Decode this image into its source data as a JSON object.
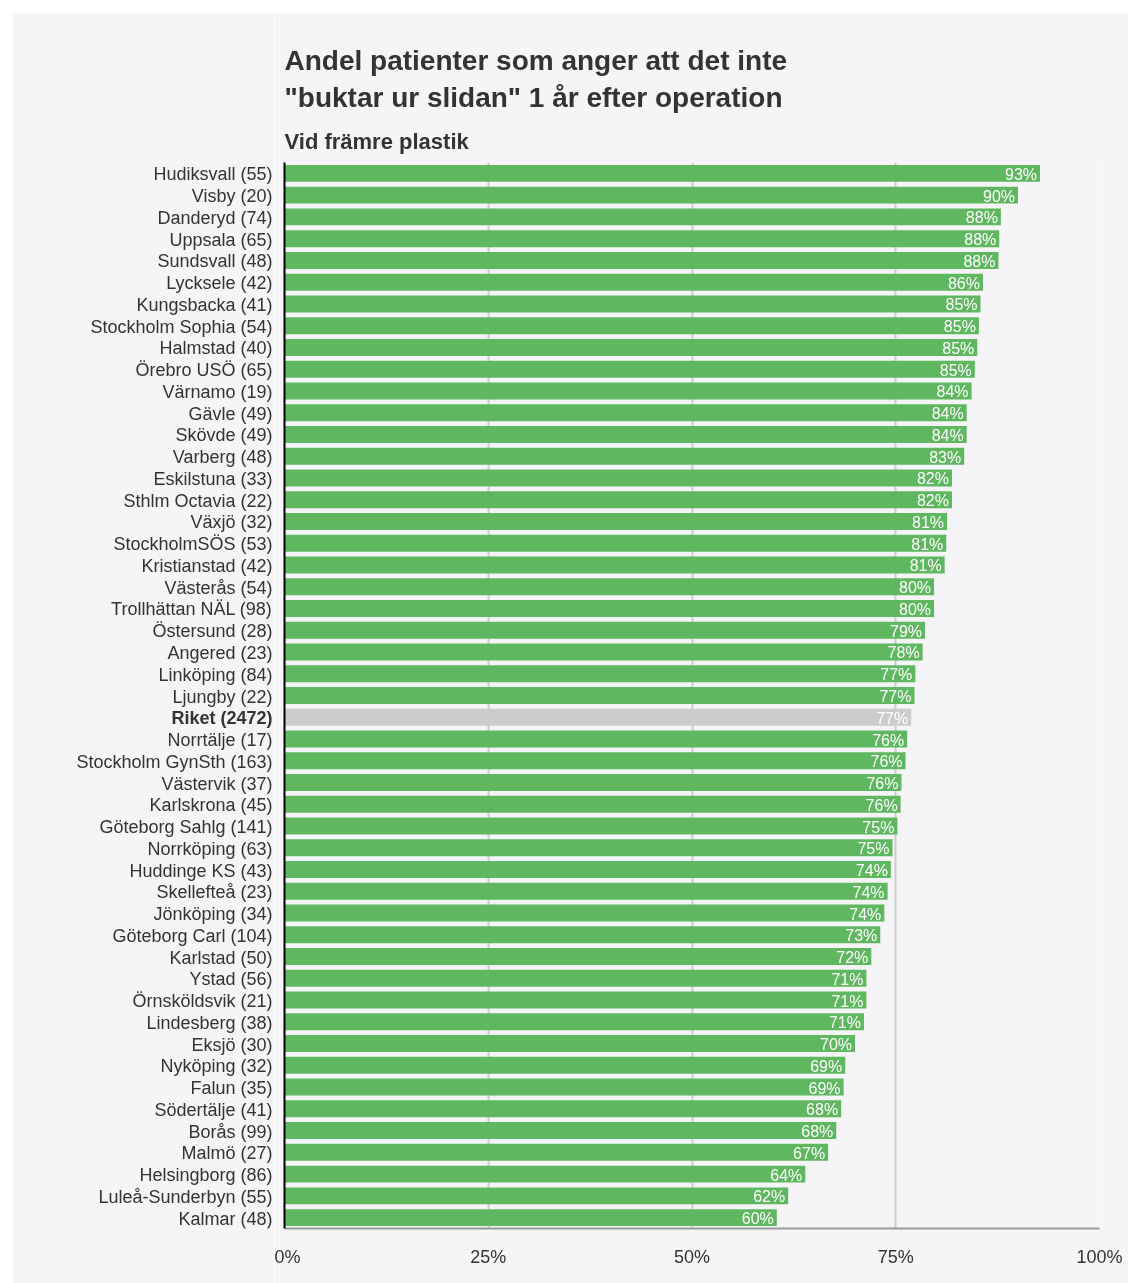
{
  "chart_data": {
    "type": "bar",
    "orientation": "horizontal",
    "title": "Andel patienter som anger att det inte\n\"buktar ur slidan\" 1 år efter operation",
    "subtitle": "Vid främre plastik",
    "categories": [
      "Hudiksvall (55)",
      "Visby (20)",
      "Danderyd (74)",
      "Uppsala (65)",
      "Sundsvall (48)",
      "Lycksele (42)",
      "Kungsbacka (41)",
      "Stockholm Sophia (54)",
      "Halmstad (40)",
      "Örebro USÖ (65)",
      "Värnamo (19)",
      "Gävle (49)",
      "Skövde (49)",
      "Varberg (48)",
      "Eskilstuna (33)",
      "Sthlm Octavia (22)",
      "Växjö (32)",
      "StockholmSÖS (53)",
      "Kristianstad (42)",
      "Västerås (54)",
      "Trollhättan NÄL (98)",
      "Östersund (28)",
      "Angered (23)",
      "Linköping (84)",
      "Ljungby (22)",
      "Riket (2472)",
      "Norrtälje (17)",
      "Stockholm GynSth (163)",
      "Västervik (37)",
      "Karlskrona (45)",
      "Göteborg Sahlg (141)",
      "Norrköping (63)",
      "Huddinge KS (43)",
      "Skellefteå (23)",
      "Jönköping (34)",
      "Göteborg Carl (104)",
      "Karlstad (50)",
      "Ystad (56)",
      "Örnsköldsvik (21)",
      "Lindesberg (38)",
      "Eksjö (30)",
      "Nyköping (32)",
      "Falun (35)",
      "Södertälje (41)",
      "Borås (99)",
      "Malmö (27)",
      "Helsingborg (86)",
      "Luleå-Sunderbyn (55)",
      "Kalmar (48)"
    ],
    "values": [
      92.7,
      90.0,
      87.9,
      87.7,
      87.6,
      85.7,
      85.4,
      85.2,
      85.0,
      84.7,
      84.3,
      83.7,
      83.7,
      83.4,
      81.9,
      81.9,
      81.3,
      81.2,
      81.0,
      79.7,
      79.7,
      78.6,
      78.3,
      77.4,
      77.3,
      76.9,
      76.4,
      76.2,
      75.7,
      75.6,
      75.2,
      74.6,
      74.4,
      74.0,
      73.6,
      73.1,
      72.0,
      71.4,
      71.4,
      71.1,
      70.0,
      68.8,
      68.6,
      68.3,
      67.7,
      66.7,
      63.9,
      61.8,
      60.4
    ],
    "value_labels": [
      "93%",
      "90%",
      "88%",
      "88%",
      "88%",
      "86%",
      "85%",
      "85%",
      "85%",
      "85%",
      "84%",
      "84%",
      "84%",
      "83%",
      "82%",
      "82%",
      "81%",
      "81%",
      "81%",
      "80%",
      "80%",
      "79%",
      "78%",
      "77%",
      "77%",
      "77%",
      "76%",
      "76%",
      "76%",
      "76%",
      "75%",
      "75%",
      "74%",
      "74%",
      "74%",
      "73%",
      "72%",
      "71%",
      "71%",
      "71%",
      "70%",
      "69%",
      "69%",
      "68%",
      "68%",
      "67%",
      "64%",
      "62%",
      "60%"
    ],
    "colors": [
      "#5fb760",
      "#5fb760",
      "#5fb760",
      "#5fb760",
      "#5fb760",
      "#5fb760",
      "#5fb760",
      "#5fb760",
      "#5fb760",
      "#5fb760",
      "#5fb760",
      "#5fb760",
      "#5fb760",
      "#5fb760",
      "#5fb760",
      "#5fb760",
      "#5fb760",
      "#5fb760",
      "#5fb760",
      "#5fb760",
      "#5fb760",
      "#5fb760",
      "#5fb760",
      "#5fb760",
      "#5fb760",
      "#cccccc",
      "#5fb760",
      "#5fb760",
      "#5fb760",
      "#5fb760",
      "#5fb760",
      "#5fb760",
      "#5fb760",
      "#5fb760",
      "#5fb760",
      "#5fb760",
      "#5fb760",
      "#5fb760",
      "#5fb760",
      "#5fb760",
      "#5fb760",
      "#5fb760",
      "#5fb760",
      "#5fb760",
      "#5fb760",
      "#5fb760",
      "#5fb760",
      "#5fb760",
      "#5fb760"
    ],
    "xlim": [
      0,
      100
    ],
    "xticks": [
      {
        "value": 0,
        "label": "0%"
      },
      {
        "value": 25,
        "label": "25%"
      },
      {
        "value": 50,
        "label": "50%"
      },
      {
        "value": 75,
        "label": "75%"
      },
      {
        "value": 100,
        "label": "100%"
      }
    ],
    "grid": "x"
  }
}
